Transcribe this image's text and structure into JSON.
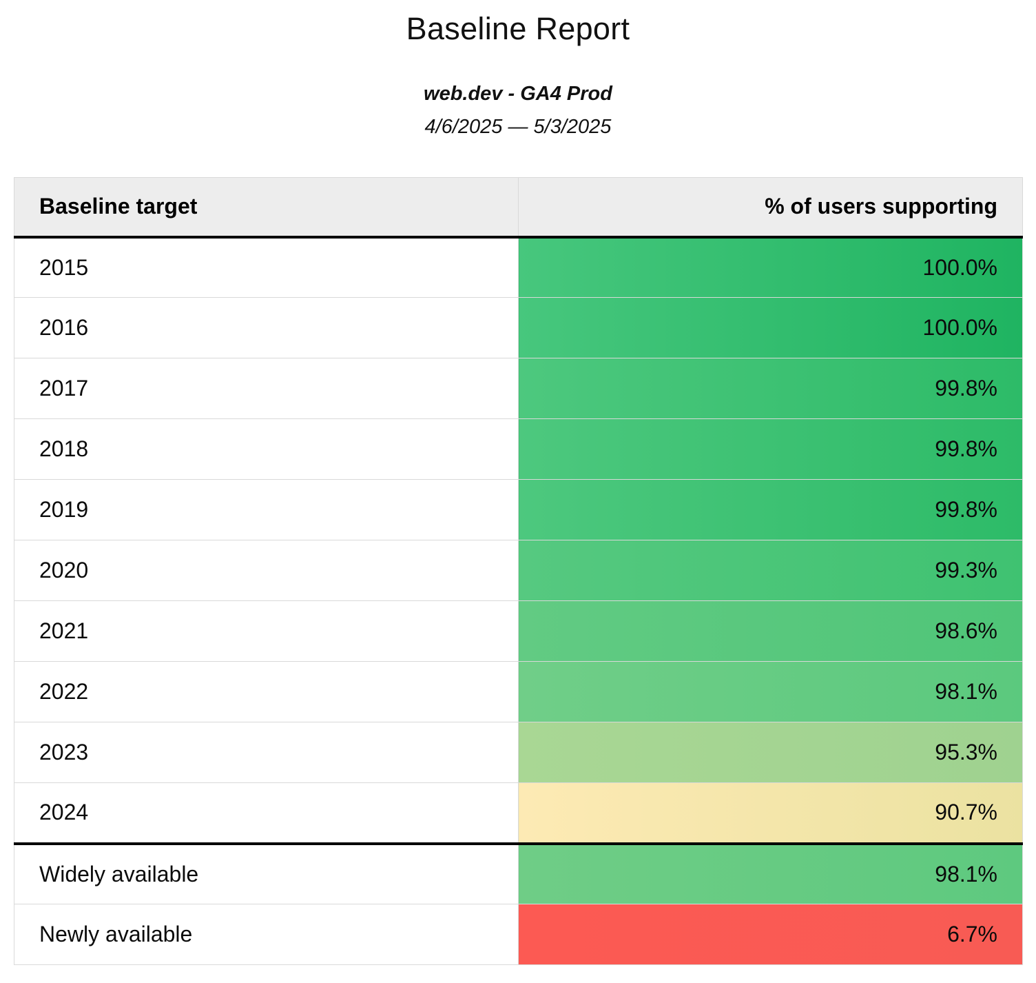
{
  "report": {
    "title": "Baseline Report",
    "subtitle": "web.dev - GA4 Prod",
    "date_range": "4/6/2025 — 5/3/2025"
  },
  "table": {
    "header": {
      "target": "Baseline target",
      "value": "% of users supporting"
    },
    "rows": [
      {
        "target": "2015",
        "value": "100.0%",
        "color_left": "#47c77d",
        "color_right": "#1fb461"
      },
      {
        "target": "2016",
        "value": "100.0%",
        "color_left": "#47c77d",
        "color_right": "#1fb461"
      },
      {
        "target": "2017",
        "value": "99.8%",
        "color_left": "#4dc87e",
        "color_right": "#2dbb68"
      },
      {
        "target": "2018",
        "value": "99.8%",
        "color_left": "#4dc87e",
        "color_right": "#2dbb68"
      },
      {
        "target": "2019",
        "value": "99.8%",
        "color_left": "#4dc87e",
        "color_right": "#2dbb68"
      },
      {
        "target": "2020",
        "value": "99.3%",
        "color_left": "#56c980",
        "color_right": "#3fc271"
      },
      {
        "target": "2021",
        "value": "98.6%",
        "color_left": "#62cb83",
        "color_right": "#4fc578"
      },
      {
        "target": "2022",
        "value": "98.1%",
        "color_left": "#70ce88",
        "color_right": "#5bc97e"
      },
      {
        "target": "2023",
        "value": "95.3%",
        "color_left": "#a9d794",
        "color_right": "#9fd290"
      },
      {
        "target": "2024",
        "value": "90.7%",
        "color_left": "#fdeab4",
        "color_right": "#ebe2a1"
      },
      {
        "target": "Widely available",
        "value": "98.1%",
        "color_left": "#6fcd86",
        "color_right": "#5ec97f",
        "divider_above": true
      },
      {
        "target": "Newly available",
        "value": "6.7%",
        "color_left": "#fc5a53",
        "color_right": "#f85b54"
      }
    ]
  },
  "colors": {
    "header_bg": "#ededed",
    "grid_line": "#d9d9d9",
    "section_divider": "#000000",
    "text": "#0b0b0b"
  },
  "chart_data": {
    "type": "table",
    "title": "Baseline Report",
    "subtitle": "web.dev - GA4 Prod",
    "date_range": "4/6/2025 — 5/3/2025",
    "columns": [
      "Baseline target",
      "% of users supporting"
    ],
    "categories": [
      "2015",
      "2016",
      "2017",
      "2018",
      "2019",
      "2020",
      "2021",
      "2022",
      "2023",
      "2024",
      "Widely available",
      "Newly available"
    ],
    "values": [
      100.0,
      100.0,
      99.8,
      99.8,
      99.8,
      99.3,
      98.6,
      98.1,
      95.3,
      90.7,
      98.1,
      6.7
    ],
    "value_format": "percent",
    "color_scale": "green-yellow-red by support percentage"
  }
}
